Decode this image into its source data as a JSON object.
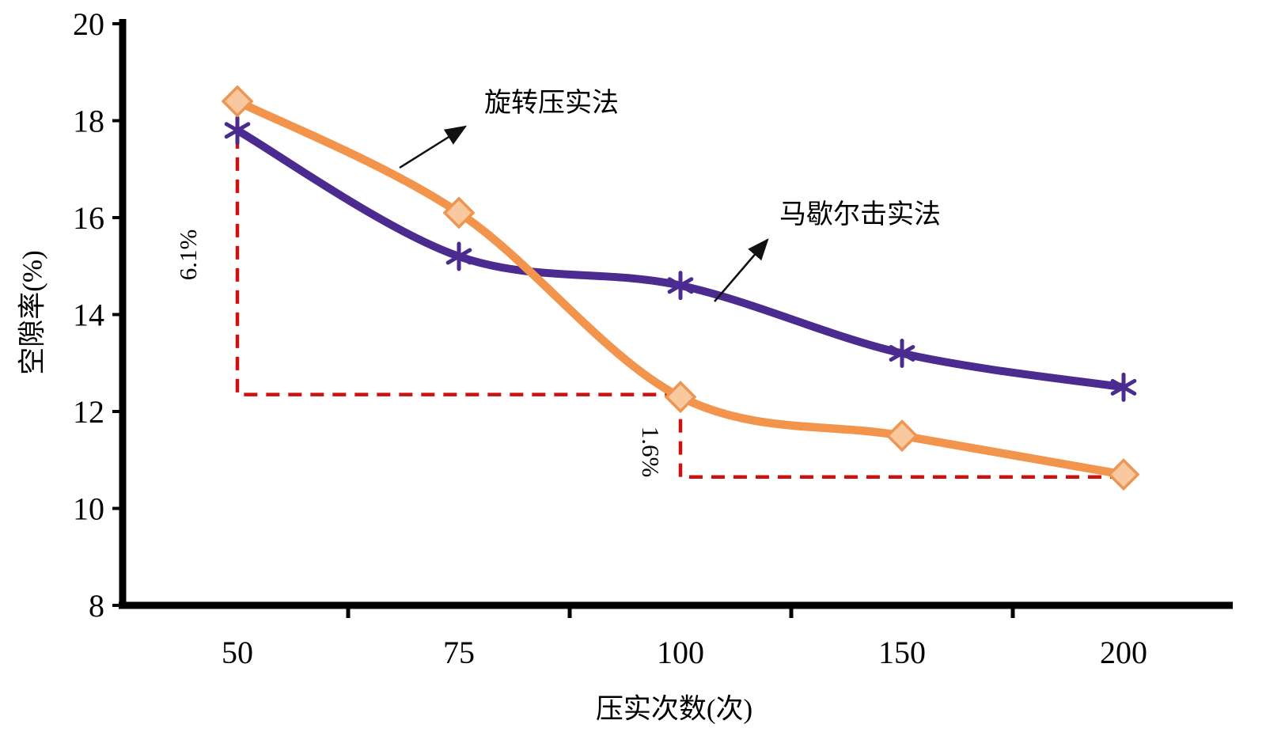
{
  "figure": {
    "background": "#FFFFFF"
  },
  "chart_data": {
    "type": "line",
    "title": "",
    "xlabel": "压实次数(次)",
    "ylabel": "空隙率(%)",
    "categories": [
      50,
      75,
      100,
      150,
      200
    ],
    "x_tick_labels": [
      "50",
      "75",
      "100",
      "150",
      "200"
    ],
    "y_ticks": [
      8,
      10,
      12,
      14,
      16,
      18,
      20
    ],
    "ylim": [
      8,
      20
    ],
    "grid": false,
    "axis_color": "#000000",
    "legend_position": "inline-annotations",
    "series": [
      {
        "name": "旋转压实法",
        "marker": "diamond",
        "line_color": "#F2944C",
        "marker_fill": "#F8C89E",
        "marker_stroke": "#EF9451",
        "values": [
          18.4,
          16.1,
          12.3,
          11.5,
          10.7
        ]
      },
      {
        "name": "马歇尔击实法",
        "marker": "asterisk",
        "line_color": "#4B2B8F",
        "values": [
          17.8,
          15.2,
          14.6,
          13.2,
          12.5
        ]
      }
    ],
    "annotations": [
      {
        "text": "6.1%",
        "rotation": -90,
        "color": "#000000"
      },
      {
        "text": "1.6%",
        "rotation": 90,
        "color": "#000000"
      }
    ],
    "drop_lines": {
      "color": "#CC1111",
      "style": "dashed",
      "segments": [
        {
          "x_start": 50,
          "x_end": 100,
          "y_top": 17.7,
          "y_bottom": 12.35,
          "label": "6.1%"
        },
        {
          "x_start": 100,
          "x_end": 200,
          "y_top": 12.3,
          "y_bottom": 10.65,
          "label": "1.6%"
        }
      ]
    }
  }
}
